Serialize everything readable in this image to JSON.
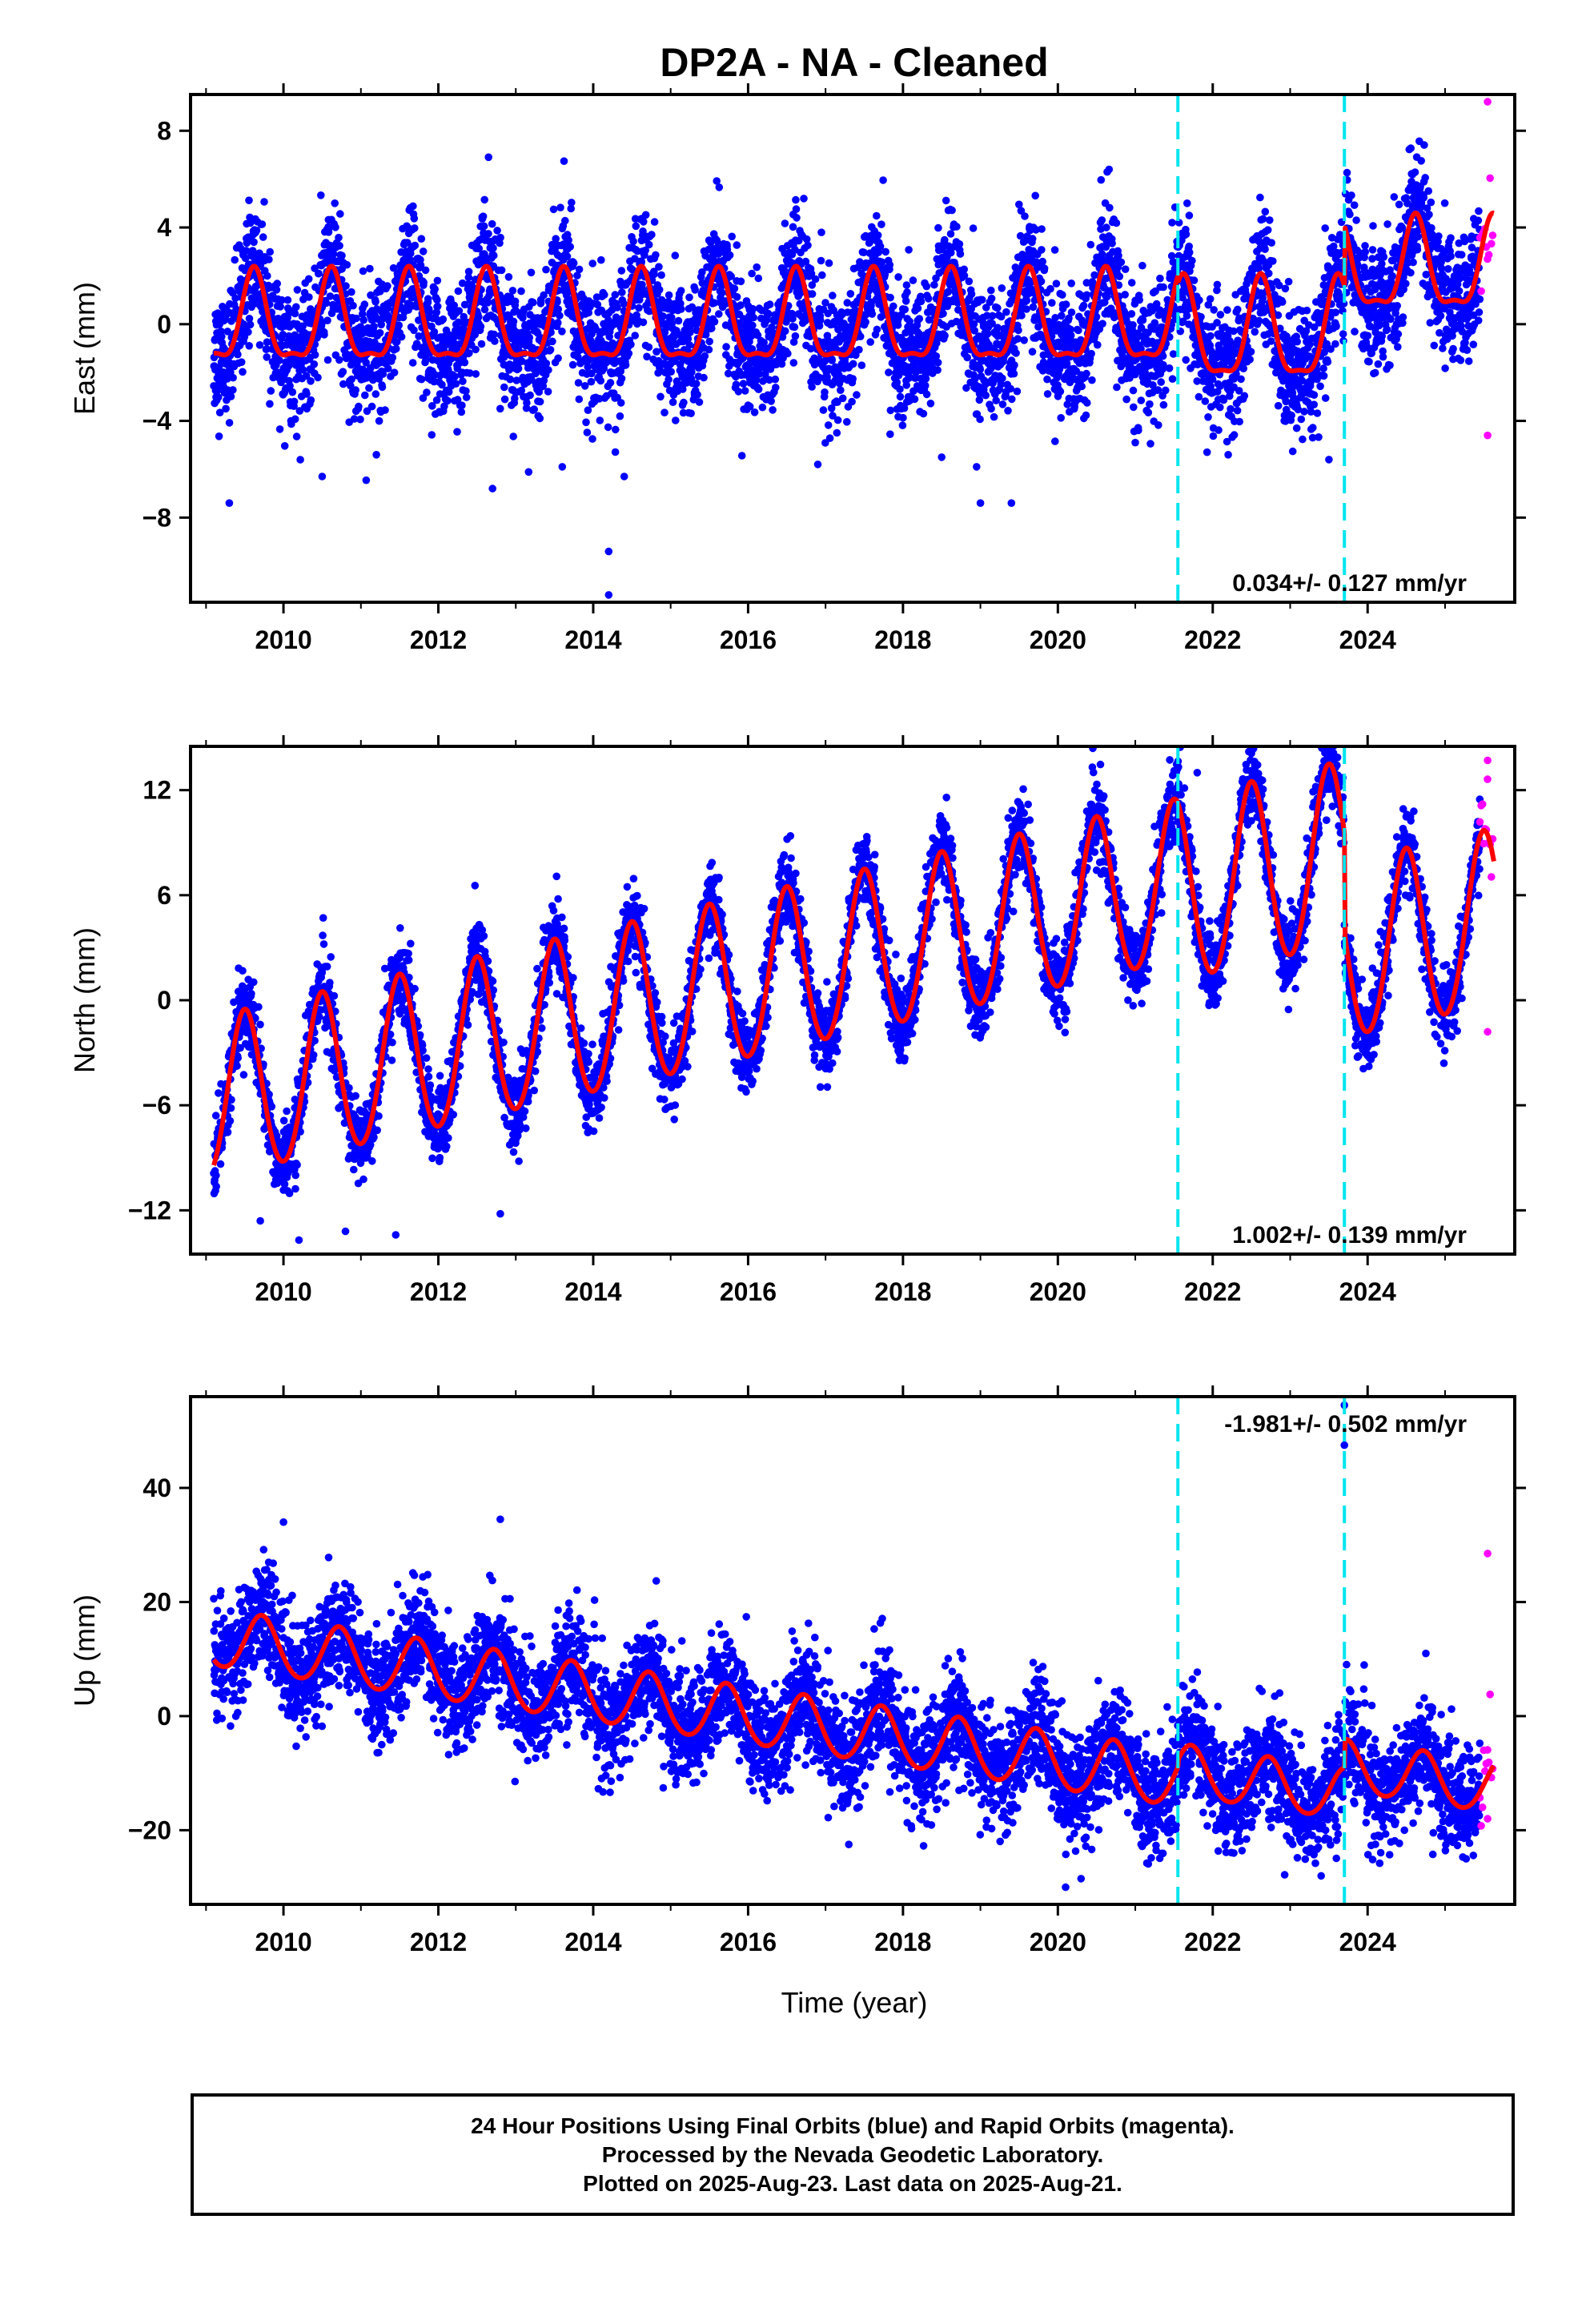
{
  "chart_data": {
    "type": "scatter",
    "title": "DP2A  - NA - Cleaned",
    "xlabel": "Time (year)",
    "x_range": [
      2008.8,
      2025.9
    ],
    "x_ticks": [
      2010,
      2012,
      2014,
      2016,
      2018,
      2020,
      2022,
      2024
    ],
    "x_tick_labels": [
      "2010",
      "2012",
      "2014",
      "2016",
      "2018",
      "2020",
      "2022",
      "2024"
    ],
    "series_colors": {
      "final_orbits": "#0000ff",
      "rapid_orbits": "#ff00ff",
      "model_fit": "#ff0000",
      "equipment_change": "#00e5ee"
    },
    "equipment_change_years": [
      2021.55,
      2023.7
    ],
    "data_start_year": 2009.1,
    "rapid_orbit_start_year": 2025.45,
    "data_end_year": 2025.63,
    "panels": [
      {
        "id": "east",
        "ylabel": "East (mm)",
        "ylim": [
          -11.5,
          9.5
        ],
        "y_ticks": [
          8,
          4,
          0,
          -4,
          -8
        ],
        "y_tick_labels": [
          "8",
          "4",
          "0",
          "−4",
          "−8"
        ],
        "rate_text": "0.034+/- 0.127 mm/yr",
        "rate_position": "bottom-right",
        "model": {
          "type": "piecewise-seasonal",
          "segments": [
            {
              "until": 2021.55,
              "offset": 0.0,
              "slope": 0.0,
              "annual_amp": 1.8,
              "semiannual_amp": 0.6,
              "phase_year": 2009.62
            },
            {
              "until": 2023.7,
              "offset": -0.5,
              "slope": 0.0,
              "annual_amp": 2.0,
              "semiannual_amp": 0.6,
              "phase_year": 2009.62
            },
            {
              "until": 2025.63,
              "offset": 2.2,
              "slope": 0.0,
              "annual_amp": 1.8,
              "semiannual_amp": 0.6,
              "phase_year": 2009.62
            }
          ]
        },
        "scatter_sigma": 1.3,
        "outliers": [
          [
            2009.3,
            -7.4
          ],
          [
            2010.5,
            -6.3
          ],
          [
            2011.2,
            -5.4
          ],
          [
            2012.7,
            -6.8
          ],
          [
            2013.6,
            -5.9
          ],
          [
            2014.2,
            -9.4
          ],
          [
            2014.2,
            -11.2
          ],
          [
            2014.4,
            -6.3
          ],
          [
            2016.9,
            -5.8
          ],
          [
            2018.5,
            -5.5
          ],
          [
            2018.95,
            -5.9
          ],
          [
            2019.0,
            -7.4
          ],
          [
            2019.4,
            -7.4
          ],
          [
            2021.0,
            -4.9
          ],
          [
            2022.2,
            -5.4
          ],
          [
            2023.5,
            -5.6
          ],
          [
            2025.55,
            -4.6
          ],
          [
            2025.55,
            9.2
          ]
        ]
      },
      {
        "id": "north",
        "ylabel": "North (mm)",
        "ylim": [
          -14.5,
          14.5
        ],
        "y_ticks": [
          12,
          6,
          0,
          -6,
          -12
        ],
        "y_tick_labels": [
          "12",
          "6",
          "0",
          "−6",
          "−12"
        ],
        "rate_text": "1.002+/- 0.139 mm/yr",
        "rate_position": "bottom-right",
        "model": {
          "type": "piecewise-seasonal",
          "segments": [
            {
              "until": 2021.55,
              "offset": -5.8,
              "slope": 1.0,
              "annual_amp": 4.6,
              "semiannual_amp": 0.3,
              "phase_year": 2009.5
            },
            {
              "until": 2023.7,
              "offset": -6.4,
              "slope": 1.0,
              "annual_amp": 5.2,
              "semiannual_amp": 0.3,
              "phase_year": 2009.5
            },
            {
              "until": 2025.63,
              "offset": -12.0,
              "slope": 1.0,
              "annual_amp": 5.0,
              "semiannual_amp": 0.3,
              "phase_year": 2009.5
            }
          ]
        },
        "scatter_sigma": 1.1,
        "outliers": [
          [
            2009.7,
            -12.6
          ],
          [
            2010.2,
            -13.7
          ],
          [
            2010.8,
            -13.2
          ],
          [
            2011.45,
            -13.4
          ],
          [
            2012.8,
            -12.2
          ],
          [
            2021.8,
            13.0
          ],
          [
            2022.5,
            14.1
          ],
          [
            2023.5,
            12.9
          ],
          [
            2025.55,
            -1.8
          ],
          [
            2025.55,
            13.7
          ]
        ]
      },
      {
        "id": "up",
        "ylabel": "Up (mm)",
        "ylim": [
          -33,
          56
        ],
        "y_ticks": [
          40,
          20,
          0,
          -20
        ],
        "y_tick_labels": [
          "40",
          "20",
          "0",
          "−20"
        ],
        "rate_text": "-1.981+/- 0.502 mm/yr",
        "rate_position": "top-right",
        "model": {
          "type": "piecewise-seasonal",
          "segments": [
            {
              "until": 2021.55,
              "offset": 13.5,
              "slope": -1.98,
              "annual_amp": 5.0,
              "semiannual_amp": 0.4,
              "phase_year": 2009.72
            },
            {
              "until": 2023.7,
              "offset": 15.0,
              "slope": -1.98,
              "annual_amp": 4.5,
              "semiannual_amp": 0.4,
              "phase_year": 2009.72
            },
            {
              "until": 2025.63,
              "offset": 20.0,
              "slope": -1.98,
              "annual_amp": 4.5,
              "semiannual_amp": 0.4,
              "phase_year": 2009.72
            }
          ]
        },
        "scatter_sigma": 4.8,
        "outliers": [
          [
            2010.0,
            34.0
          ],
          [
            2012.8,
            34.5
          ],
          [
            2017.3,
            -22.5
          ],
          [
            2020.1,
            -30.0
          ],
          [
            2020.3,
            -28.5
          ],
          [
            2023.4,
            -28.0
          ],
          [
            2023.7,
            47.5
          ],
          [
            2023.7,
            54.5
          ],
          [
            2025.55,
            28.5
          ],
          [
            2025.55,
            -18.0
          ]
        ]
      }
    ]
  },
  "footer": {
    "line1": "24 Hour Positions Using Final Orbits (blue) and Rapid Orbits (magenta).",
    "line2": "Processed by the Nevada Geodetic Laboratory.",
    "line3": "Plotted on 2025-Aug-23. Last data on 2025-Aug-21."
  }
}
